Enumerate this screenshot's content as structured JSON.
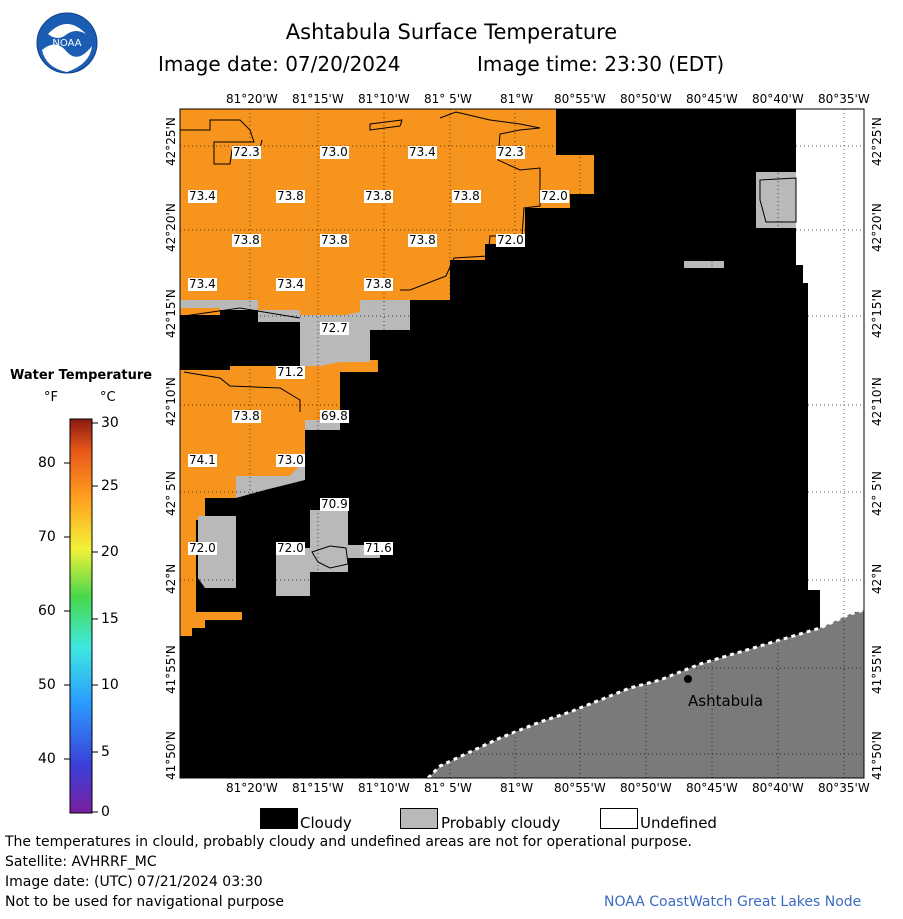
{
  "header": {
    "title": "Ashtabula Surface Temperature",
    "image_date": "Image date: 07/20/2024",
    "image_time": "Image time: 23:30 (EDT)"
  },
  "logo": {
    "label": "NOAA",
    "icon": "noaa-logo-icon"
  },
  "axes": {
    "top_lon_ticks": [
      "81°20'W",
      "81°15'W",
      "81°10'W",
      "81° 5'W",
      "81°W",
      "80°55'W",
      "80°50'W",
      "80°45'W",
      "80°40'W",
      "80°35'W"
    ],
    "bottom_lon_ticks": [
      "81°20'W",
      "81°15'W",
      "81°10'W",
      "81° 5'W",
      "81°W",
      "80°55'W",
      "80°50'W",
      "80°45'W",
      "80°40'W",
      "80°35'W"
    ],
    "lat_ticks": [
      "42°25'N",
      "42°20'N",
      "42°15'N",
      "42°10'N",
      "42° 5'N",
      "42°N",
      "41°55'N",
      "41°50'N"
    ]
  },
  "temperatures": [
    {
      "value": "72.3"
    },
    {
      "value": "73.0"
    },
    {
      "value": "73.4"
    },
    {
      "value": "72.3"
    },
    {
      "value": "73.4"
    },
    {
      "value": "73.8"
    },
    {
      "value": "73.8"
    },
    {
      "value": "73.8"
    },
    {
      "value": "72.0"
    },
    {
      "value": "73.8"
    },
    {
      "value": "73.8"
    },
    {
      "value": "73.8"
    },
    {
      "value": "72.0"
    },
    {
      "value": "73.4"
    },
    {
      "value": "73.4"
    },
    {
      "value": "73.8"
    },
    {
      "value": "72.7"
    },
    {
      "value": "71.2"
    },
    {
      "value": "73.8"
    },
    {
      "value": "69.8"
    },
    {
      "value": "74.1"
    },
    {
      "value": "73.0"
    },
    {
      "value": "70.9"
    },
    {
      "value": "72.0"
    },
    {
      "value": "72.0"
    },
    {
      "value": "71.6"
    }
  ],
  "place_label": "Ashtabula",
  "legend": {
    "title": "Water Temperature",
    "unit_f": "°F",
    "unit_c": "°C",
    "f_ticks": [
      "80",
      "70",
      "60",
      "50",
      "40"
    ],
    "c_ticks": [
      "30",
      "25",
      "20",
      "15",
      "10",
      "5",
      "0"
    ]
  },
  "key": {
    "cloudy": "Cloudy",
    "probably_cloudy": "Probably cloudy",
    "undefined": "Undefined"
  },
  "colors": {
    "water_warm": "#f7941d",
    "cloudy": "#000000",
    "probably_cloudy": "#b9b9b9",
    "land": "#7a7a7a",
    "undefined": "#ffffff"
  },
  "footer": {
    "line1": "The temperatures in clould, probably cloudy and undefined areas are not for operational purpose.",
    "line2": "Satellite: AVHRRF_MC",
    "line3": "Image date: (UTC) 07/21/2024  03:30",
    "line4": "Not to be used for navigational purpose",
    "credit": "NOAA CoastWatch Great Lakes Node"
  }
}
